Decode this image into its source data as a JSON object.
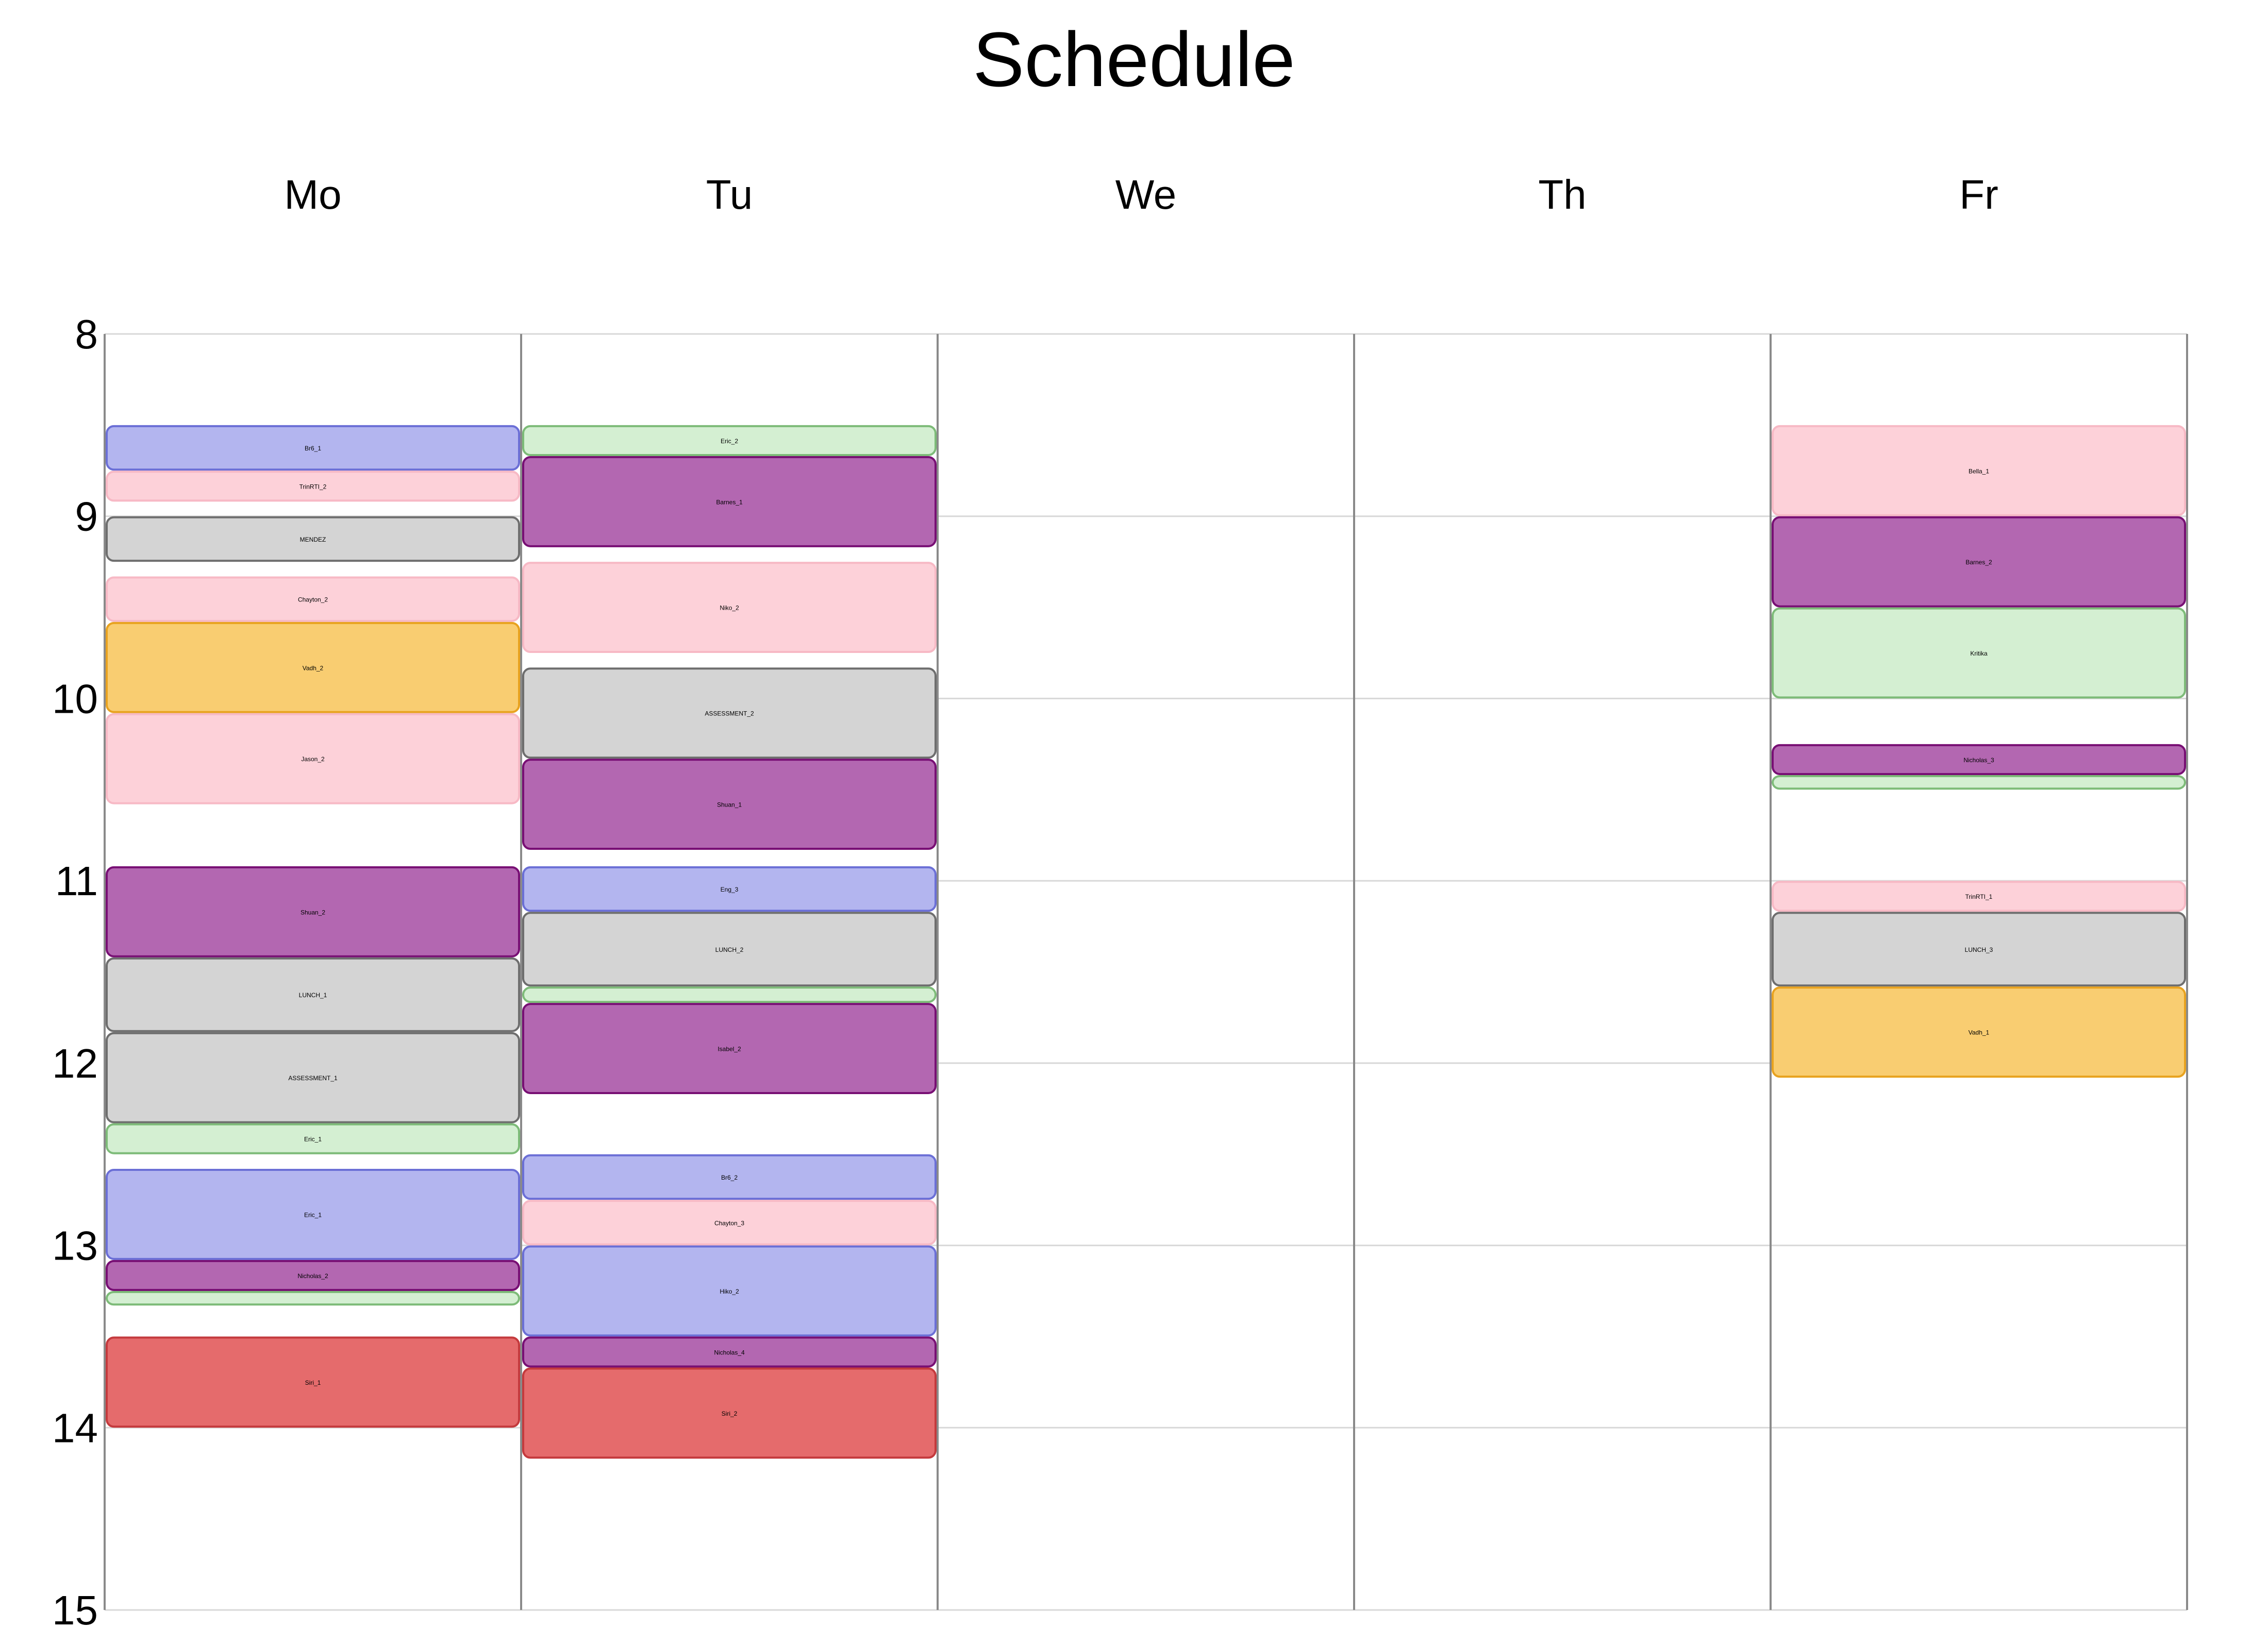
{
  "chart_data": {
    "type": "schedule",
    "title": "Schedule",
    "days": [
      "Mo",
      "Tu",
      "We",
      "Th",
      "Fr"
    ],
    "hours": [
      8,
      9,
      10,
      11,
      12,
      13,
      14,
      15
    ],
    "ylim": [
      8,
      15
    ],
    "category_colors": {
      "blue": {
        "fill": "#b3b5ef",
        "stroke": "#6b6fd6"
      },
      "pink": {
        "fill": "#fdd1d9",
        "stroke": "#f7b9c5"
      },
      "gray": {
        "fill": "#d4d4d4",
        "stroke": "#6e6e6e"
      },
      "orange": {
        "fill": "#f9cd71",
        "stroke": "#e8a21f"
      },
      "purple": {
        "fill": "#b367b1",
        "stroke": "#780f74"
      },
      "green": {
        "fill": "#d4efd2",
        "stroke": "#7dbb78"
      },
      "red": {
        "fill": "#e56b6c",
        "stroke": "#c43a3d"
      }
    },
    "events": [
      {
        "day": "Mo",
        "start": 8.5,
        "end": 8.75,
        "label": "Br6_1",
        "color": "blue"
      },
      {
        "day": "Mo",
        "start": 8.75,
        "end": 8.92,
        "label": "TrinRTI_2",
        "color": "pink"
      },
      {
        "day": "Mo",
        "start": 9.0,
        "end": 9.25,
        "label": "MENDEZ",
        "color": "gray"
      },
      {
        "day": "Mo",
        "start": 9.33,
        "end": 9.58,
        "label": "Chayton_2",
        "color": "pink"
      },
      {
        "day": "Mo",
        "start": 9.58,
        "end": 10.08,
        "label": "Vadh_2",
        "color": "orange"
      },
      {
        "day": "Mo",
        "start": 10.08,
        "end": 10.58,
        "label": "Jason_2",
        "color": "pink"
      },
      {
        "day": "Mo",
        "start": 10.92,
        "end": 11.42,
        "label": "Shuan_2",
        "color": "purple"
      },
      {
        "day": "Mo",
        "start": 11.42,
        "end": 11.83,
        "label": "LUNCH_1",
        "color": "gray"
      },
      {
        "day": "Mo",
        "start": 11.83,
        "end": 12.33,
        "label": "ASSESSMENT_1",
        "color": "gray"
      },
      {
        "day": "Mo",
        "start": 12.33,
        "end": 12.5,
        "label": "Eric_1",
        "color": "green"
      },
      {
        "day": "Mo",
        "start": 12.58,
        "end": 13.08,
        "label": "Eric_1",
        "color": "blue"
      },
      {
        "day": "Mo",
        "start": 13.08,
        "end": 13.25,
        "label": "Nicholas_2",
        "color": "purple"
      },
      {
        "day": "Mo",
        "start": 13.25,
        "end": 13.33,
        "label": "",
        "color": "green"
      },
      {
        "day": "Mo",
        "start": 13.5,
        "end": 14.0,
        "label": "Siri_1",
        "color": "red"
      },
      {
        "day": "Tu",
        "start": 8.5,
        "end": 8.67,
        "label": "Eric_2",
        "color": "green"
      },
      {
        "day": "Tu",
        "start": 8.67,
        "end": 9.17,
        "label": "Barnes_1",
        "color": "purple"
      },
      {
        "day": "Tu",
        "start": 9.25,
        "end": 9.75,
        "label": "Niko_2",
        "color": "pink"
      },
      {
        "day": "Tu",
        "start": 9.83,
        "end": 10.33,
        "label": "ASSESSMENT_2",
        "color": "gray"
      },
      {
        "day": "Tu",
        "start": 10.33,
        "end": 10.83,
        "label": "Shuan_1",
        "color": "purple"
      },
      {
        "day": "Tu",
        "start": 10.92,
        "end": 11.17,
        "label": "Eng_3",
        "color": "blue"
      },
      {
        "day": "Tu",
        "start": 11.17,
        "end": 11.58,
        "label": "LUNCH_2",
        "color": "gray"
      },
      {
        "day": "Tu",
        "start": 11.58,
        "end": 11.67,
        "label": "",
        "color": "green"
      },
      {
        "day": "Tu",
        "start": 11.67,
        "end": 12.17,
        "label": "Isabel_2",
        "color": "purple"
      },
      {
        "day": "Tu",
        "start": 12.5,
        "end": 12.75,
        "label": "Br6_2",
        "color": "blue"
      },
      {
        "day": "Tu",
        "start": 12.75,
        "end": 13.0,
        "label": "Chayton_3",
        "color": "pink"
      },
      {
        "day": "Tu",
        "start": 13.0,
        "end": 13.5,
        "label": "Hiko_2",
        "color": "blue"
      },
      {
        "day": "Tu",
        "start": 13.5,
        "end": 13.67,
        "label": "Nicholas_4",
        "color": "purple"
      },
      {
        "day": "Tu",
        "start": 13.67,
        "end": 14.17,
        "label": "Siri_2",
        "color": "red"
      },
      {
        "day": "Fr",
        "start": 8.5,
        "end": 9.0,
        "label": "Bella_1",
        "color": "pink"
      },
      {
        "day": "Fr",
        "start": 9.0,
        "end": 9.5,
        "label": "Barnes_2",
        "color": "purple"
      },
      {
        "day": "Fr",
        "start": 9.5,
        "end": 10.0,
        "label": "Kritika",
        "color": "green"
      },
      {
        "day": "Fr",
        "start": 10.25,
        "end": 10.42,
        "label": "Nicholas_3",
        "color": "purple"
      },
      {
        "day": "Fr",
        "start": 10.42,
        "end": 10.5,
        "label": "",
        "color": "green"
      },
      {
        "day": "Fr",
        "start": 11.0,
        "end": 11.17,
        "label": "TrinRTI_1",
        "color": "pink"
      },
      {
        "day": "Fr",
        "start": 11.17,
        "end": 11.58,
        "label": "LUNCH_3",
        "color": "gray"
      },
      {
        "day": "Fr",
        "start": 11.58,
        "end": 12.08,
        "label": "Vadh_1",
        "color": "orange"
      }
    ]
  }
}
